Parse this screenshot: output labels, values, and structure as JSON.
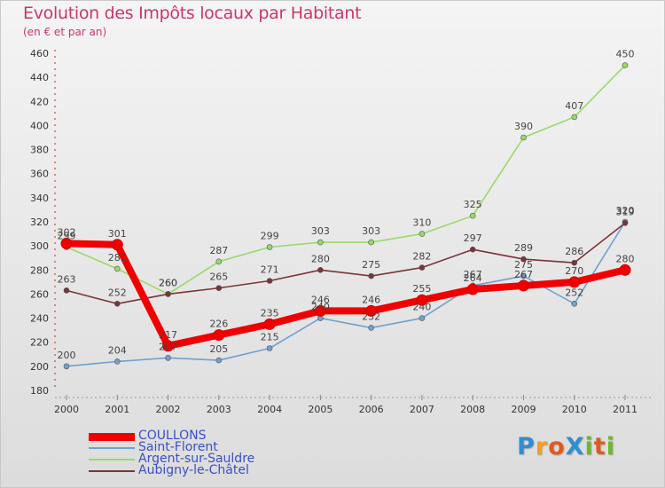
{
  "header": {
    "title": "Evolution des Impôts locaux par Habitant",
    "subtitle": "(en € et par an)"
  },
  "brand": {
    "text": "ProXiti",
    "letters": [
      {
        "ch": "P",
        "color": "#2f8fd0"
      },
      {
        "ch": "r",
        "color": "#f0a020"
      },
      {
        "ch": "o",
        "color": "#e05a20"
      },
      {
        "ch": "X",
        "color": "#2f8fd0"
      },
      {
        "ch": "i",
        "color": "#6cb82c"
      },
      {
        "ch": "t",
        "color": "#e05a20"
      },
      {
        "ch": "i",
        "color": "#6cb82c"
      }
    ]
  },
  "chart_data": {
    "type": "line",
    "x": [
      2000,
      2001,
      2002,
      2003,
      2004,
      2005,
      2006,
      2007,
      2008,
      2009,
      2010,
      2011
    ],
    "ylim": [
      180,
      460
    ],
    "yticks": [
      180,
      200,
      220,
      240,
      260,
      280,
      300,
      320,
      340,
      360,
      380,
      400,
      420,
      440,
      460
    ],
    "grid": false,
    "legend_placement": "bottom-left",
    "series": [
      {
        "name": "COULLONS",
        "color": "#f00000",
        "values": [
          302,
          301,
          217,
          226,
          235,
          246,
          246,
          255,
          264,
          267,
          270,
          280
        ]
      },
      {
        "name": "Saint-Florent",
        "color": "#6fa1cf",
        "values": [
          200,
          204,
          207,
          205,
          215,
          240,
          232,
          240,
          267,
          275,
          252,
          320
        ]
      },
      {
        "name": "Argent-sur-Sauldre",
        "color": "#9ad86a",
        "values": [
          299,
          281,
          260,
          287,
          299,
          303,
          303,
          310,
          325,
          390,
          407,
          450
        ]
      },
      {
        "name": "Aubigny-le-Châtel",
        "color": "#7a3438",
        "values": [
          263,
          252,
          260,
          265,
          271,
          280,
          275,
          282,
          297,
          289,
          286,
          319
        ]
      }
    ]
  }
}
